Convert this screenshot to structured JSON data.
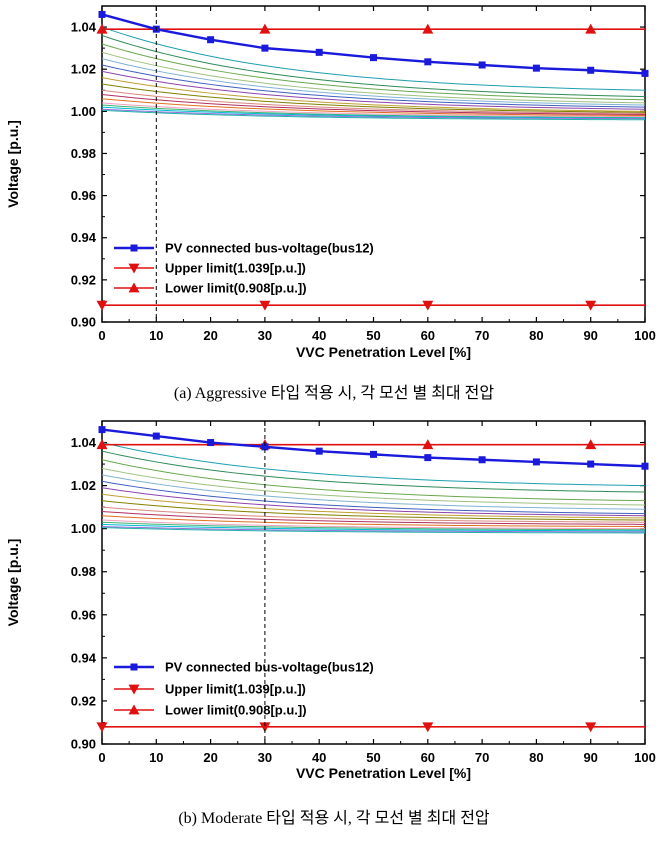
{
  "chart_data": [
    {
      "type": "line",
      "caption": "(a) Aggressive 타입 적용 시, 각 모선 별 최대 전압",
      "xlabel": "VVC Penetration Level [%]",
      "ylabel": "Voltage [p.u.]",
      "xlim": [
        0,
        100
      ],
      "ylim": [
        0.9,
        1.05
      ],
      "xticks": [
        "0",
        "10",
        "20",
        "30",
        "40",
        "50",
        "60",
        "70",
        "80",
        "90",
        "100"
      ],
      "yticks": [
        "0.90",
        "0.92",
        "0.94",
        "0.96",
        "0.98",
        "1.00",
        "1.02",
        "1.04"
      ],
      "vline_x": 10,
      "legend": [
        "PV connected bus-voltage(bus12)",
        "Upper limit(1.039[p.u.])",
        "Lower limit(0.908[p.u.])"
      ],
      "pv_series": {
        "x": [
          0,
          10,
          20,
          30,
          40,
          50,
          60,
          70,
          80,
          90,
          100
        ],
        "y": [
          1.046,
          1.039,
          1.034,
          1.03,
          1.028,
          1.0255,
          1.0235,
          1.022,
          1.0205,
          1.0195,
          1.018
        ]
      },
      "upper_limit": {
        "y": 1.039,
        "marker_x": [
          0,
          30,
          60,
          90
        ]
      },
      "lower_limit": {
        "y": 0.908,
        "marker_x": [
          0,
          30,
          60,
          90
        ]
      },
      "bus_curves": {
        "start": [
          1.04,
          1.036,
          1.032,
          1.028,
          1.025,
          1.022,
          1.019,
          1.016,
          1.013,
          1.01,
          1.008,
          1.006,
          1.004,
          1.003,
          1.002,
          1.001,
          1.0005
        ],
        "end": [
          1.01,
          1.007,
          1.0055,
          1.004,
          1.003,
          1.002,
          1.001,
          1.0,
          0.9995,
          0.999,
          0.9985,
          0.998,
          0.9975,
          0.997,
          0.9968,
          0.9965,
          0.996
        ],
        "colors": [
          "#1e9fb0",
          "#2e8b57",
          "#6aa84f",
          "#a0c080",
          "#7fb3d5",
          "#4060c0",
          "#8e44ad",
          "#c0a030",
          "#808000",
          "#d98880",
          "#b03060",
          "#e07020",
          "#f0a0c0",
          "#3cb371",
          "#00bcd4",
          "#9370db",
          "#20b2aa"
        ]
      }
    },
    {
      "type": "line",
      "caption": "(b) Moderate 타입 적용 시, 각 모선 별 최대 전압",
      "xlabel": "VVC Penetration Level [%]",
      "ylabel": "Voltage [p.u.]",
      "xlim": [
        0,
        100
      ],
      "ylim": [
        0.9,
        1.05
      ],
      "xticks": [
        "0",
        "10",
        "20",
        "30",
        "40",
        "50",
        "60",
        "70",
        "80",
        "90",
        "100"
      ],
      "yticks": [
        "0.90",
        "0.92",
        "0.94",
        "0.96",
        "0.98",
        "1.00",
        "1.02",
        "1.04"
      ],
      "vline_x": 30,
      "legend": [
        "PV connected bus-voltage(bus12)",
        "Upper limit(1.039[p.u.])",
        "Lower limit(0.908[p.u.])"
      ],
      "pv_series": {
        "x": [
          0,
          10,
          20,
          30,
          40,
          50,
          60,
          70,
          80,
          90,
          100
        ],
        "y": [
          1.046,
          1.043,
          1.04,
          1.038,
          1.036,
          1.0345,
          1.033,
          1.032,
          1.031,
          1.03,
          1.029
        ]
      },
      "upper_limit": {
        "y": 1.039,
        "marker_x": [
          0,
          30,
          60,
          90
        ]
      },
      "lower_limit": {
        "y": 0.908,
        "marker_x": [
          0,
          30,
          60,
          90
        ]
      },
      "bus_curves": {
        "start": [
          1.04,
          1.036,
          1.032,
          1.028,
          1.025,
          1.022,
          1.019,
          1.016,
          1.013,
          1.01,
          1.008,
          1.006,
          1.004,
          1.003,
          1.002,
          1.001,
          1.0005
        ],
        "end": [
          1.02,
          1.017,
          1.013,
          1.011,
          1.009,
          1.007,
          1.006,
          1.005,
          1.004,
          1.003,
          1.002,
          1.001,
          1.0,
          0.9995,
          0.999,
          0.9985,
          0.998
        ],
        "colors": [
          "#1e9fb0",
          "#2e8b57",
          "#6aa84f",
          "#a0c080",
          "#7fb3d5",
          "#4060c0",
          "#8e44ad",
          "#c0a030",
          "#808000",
          "#d98880",
          "#b03060",
          "#e07020",
          "#f0a0c0",
          "#3cb371",
          "#00bcd4",
          "#9370db",
          "#20b2aa"
        ]
      }
    }
  ]
}
